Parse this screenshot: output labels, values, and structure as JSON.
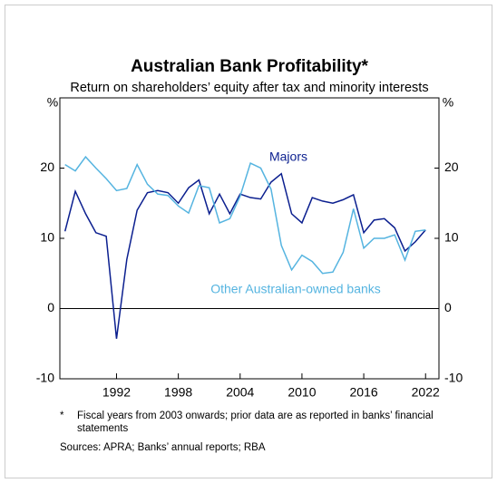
{
  "chart_data": {
    "type": "line",
    "title": "Australian Bank Profitability*",
    "subtitle": "Return on shareholders’ equity after tax and minority interests",
    "y_unit_label": "%",
    "x": [
      1987,
      1988,
      1989,
      1990,
      1991,
      1992,
      1993,
      1994,
      1995,
      1996,
      1997,
      1998,
      1999,
      2000,
      2001,
      2002,
      2003,
      2004,
      2005,
      2006,
      2007,
      2008,
      2009,
      2010,
      2011,
      2012,
      2013,
      2014,
      2015,
      2016,
      2017,
      2018,
      2019,
      2020,
      2021,
      2022
    ],
    "series": [
      {
        "name": "Majors",
        "color": "#0b1f8f",
        "values": [
          11,
          16.7,
          13.5,
          10.8,
          10.3,
          -4.3,
          7,
          14,
          16.5,
          16.8,
          16.5,
          15,
          17.2,
          18.3,
          13.5,
          16.3,
          13.5,
          16.3,
          15.8,
          15.6,
          18,
          19.2,
          13.5,
          12.2,
          15.8,
          15.3,
          15,
          15.5,
          16.2,
          10.8,
          12.6,
          12.8,
          11.5,
          8.2,
          9.5,
          11.2
        ]
      },
      {
        "name": "Other Australian-owned banks",
        "color": "#55b4e0",
        "values": [
          20.5,
          19.6,
          21.6,
          20,
          18.5,
          16.8,
          17.1,
          20.5,
          17.7,
          16.3,
          16.1,
          14.6,
          13.6,
          17.5,
          17.2,
          12.2,
          12.8,
          16,
          20.7,
          20,
          17,
          9,
          5.5,
          7.6,
          6.7,
          5,
          5.2,
          8,
          14.2,
          8.6,
          10,
          10,
          10.5,
          6.9,
          11,
          11.2
        ]
      }
    ],
    "xlim": [
      1986.5,
      2023.3
    ],
    "xticks": [
      1992,
      1998,
      2004,
      2010,
      2016,
      2022
    ],
    "ylim": [
      -10,
      30
    ],
    "yticks": [
      -10,
      0,
      10,
      20
    ],
    "footnote_marker": "*",
    "footnote": "Fiscal years from 2003 onwards; prior data are as reported in banks’ financial statements",
    "sources": "Sources: APRA; Banks’ annual reports; RBA"
  }
}
